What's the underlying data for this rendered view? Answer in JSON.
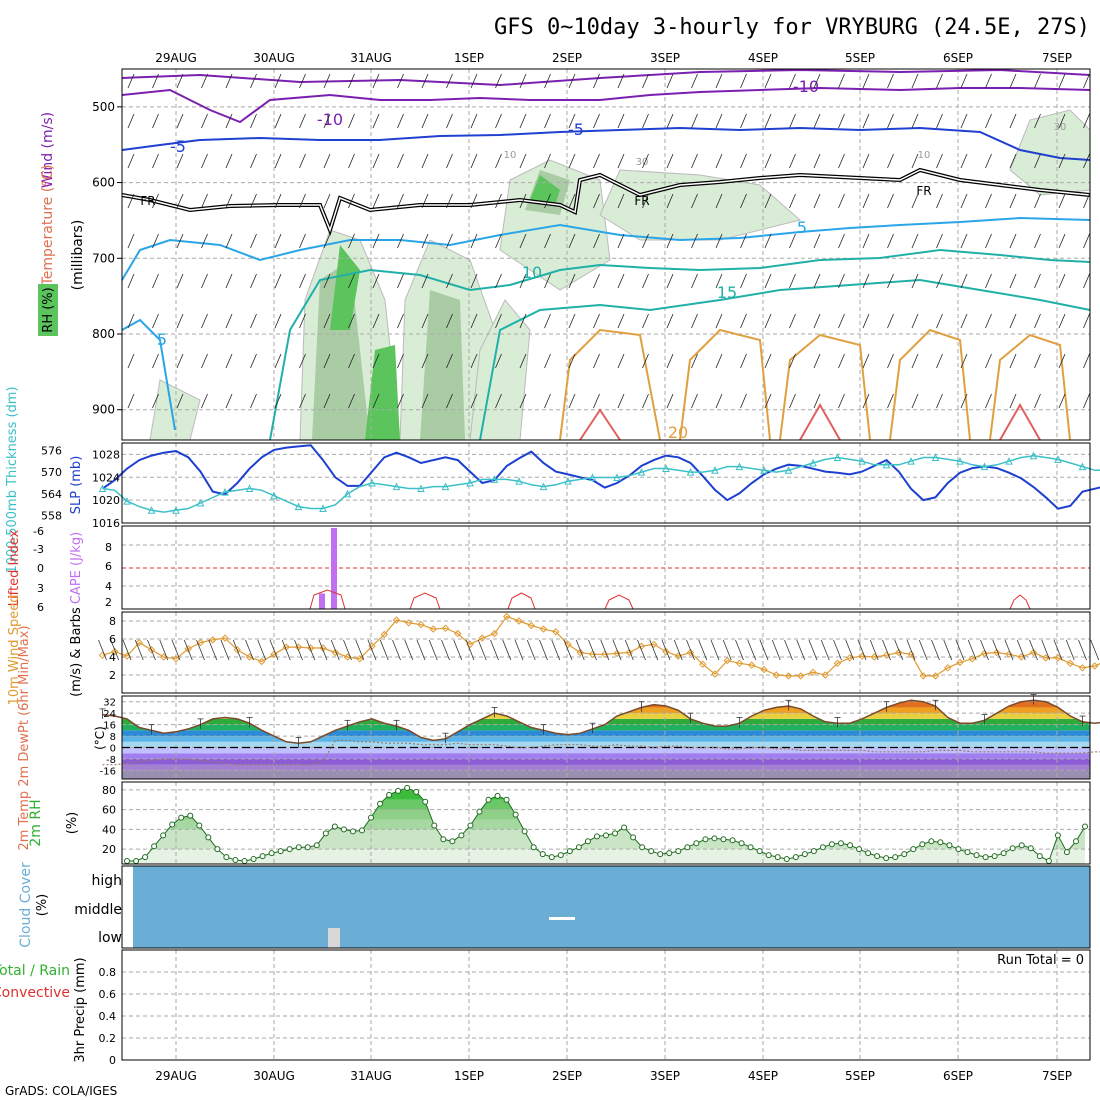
{
  "header": {
    "title": "GFS 0~10day 3-hourly for VRYBURG (24.5E, 27S)",
    "footer": "GrADS: COLA/IGES"
  },
  "x_axis": {
    "day_labels": [
      "29AUG",
      "30AUG",
      "31AUG",
      "1SEP",
      "2SEP",
      "3SEP",
      "4SEP",
      "5SEP",
      "6SEP",
      "7SEP"
    ]
  },
  "colors": {
    "slp": "#1d3fd0",
    "thickness": "#3cc0c8",
    "lifted_index": "#e03030",
    "cape": "#c070f0",
    "wind_speed": "#e09a30",
    "temp_fill_green": "#2eab3a",
    "temp_fill_orange": "#f0a020",
    "rh_green": "#2ea82e",
    "cloud": "#6aaed6",
    "freezing_level": "#000000",
    "temperature_label": "#e07050",
    "wind_label": "#8020b0",
    "rh_label": "#30b030",
    "precip_total": "#30b030",
    "precip_convective": "#e03030"
  },
  "chart_data": [
    {
      "id": "upper_air",
      "type": "contour",
      "ylabel": "(millibars)",
      "label_parts": [
        "Wind (m/s)",
        "Temperature (°C)",
        "RH (%)"
      ],
      "yticks": [
        500,
        600,
        700,
        800,
        900
      ],
      "ylim": [
        940,
        450
      ],
      "contour_labels": [
        "-10",
        "-10",
        "-5",
        "-5",
        "5",
        "5",
        "10",
        "15",
        "20",
        "FR",
        "FR",
        "FR"
      ],
      "rh_labels": [
        "30",
        "10",
        "30",
        "10"
      ]
    },
    {
      "id": "slp_thickness",
      "type": "line",
      "left_label": "1000-500mb Thickness (dm)",
      "right_label": "SLP (mb)",
      "left_ticks": [
        558,
        564,
        570,
        576
      ],
      "right_ticks": [
        1016,
        1020,
        1024,
        1028
      ],
      "slp_ylim": [
        1016,
        1030
      ],
      "thick_ylim": [
        556,
        578
      ],
      "series": [
        {
          "name": "SLP",
          "axis": "right",
          "values": [
            1022,
            1023.5,
            1025.5,
            1027,
            1027.8,
            1028.3,
            1028.6,
            1027.5,
            1025,
            1021.5,
            1021,
            1023,
            1025.5,
            1027.5,
            1028.8,
            1029.2,
            1029.4,
            1029.6,
            1027,
            1024,
            1022.5,
            1022.5,
            1025,
            1027.5,
            1028.3,
            1027.5,
            1026.5,
            1027,
            1027.5,
            1027,
            1025,
            1023,
            1023.5,
            1026,
            1027.3,
            1028.5,
            1026.5,
            1025,
            1024.5,
            1024,
            1023.5,
            1022.2,
            1023,
            1024.3,
            1026,
            1027,
            1027.8,
            1027.5,
            1026.5,
            1024.2,
            1021.8,
            1020,
            1021.2,
            1023,
            1024.5,
            1025.5,
            1026.2,
            1026,
            1025.5,
            1025,
            1024.8,
            1024.5,
            1025,
            1026,
            1027,
            1025,
            1022,
            1020,
            1020.5,
            1023,
            1024.8,
            1025.6,
            1025.9,
            1025.6,
            1024.8,
            1023.8,
            1022.3,
            1020.5,
            1018.5,
            1019,
            1021.5,
            1022,
            1022.5,
            1023,
            1023.5,
            1023,
            1022.2,
            1021.5,
            1020.5,
            1022,
            1024,
            1025.5,
            1023.5,
            1021.5,
            1019.5,
            1017.5,
            1018.5,
            1020.5,
            1021.5,
            1022,
            1023.5,
            1025,
            1026.5
          ]
        },
        {
          "name": "Thickness",
          "axis": "left",
          "values": [
            565.5,
            565,
            562,
            560.5,
            559.5,
            559,
            559.5,
            560,
            561.5,
            563,
            564.5,
            565,
            565.5,
            565,
            563.5,
            562,
            560.5,
            560,
            560,
            561,
            564,
            566,
            567,
            566.5,
            566,
            565.5,
            565.5,
            566,
            566,
            566.5,
            567,
            568,
            568,
            568,
            567.5,
            566.5,
            566,
            566.5,
            567.5,
            568,
            568.5,
            568.5,
            568.5,
            569,
            570,
            571,
            571,
            570.5,
            570,
            570,
            570.5,
            571.5,
            571.5,
            571,
            570.5,
            570,
            570.5,
            571.5,
            572.5,
            573.5,
            574,
            573.5,
            573,
            572,
            572,
            572,
            573,
            574,
            574,
            573.5,
            573,
            572,
            571.5,
            572,
            573,
            574,
            574.5,
            574,
            573.5,
            572.5,
            571.5,
            570.5,
            570.5,
            571.5,
            572.5,
            573.5,
            574,
            574.5,
            575,
            574.5,
            573,
            572.5,
            572.5,
            573,
            574,
            575,
            576,
            575,
            574,
            573,
            571.5,
            570.5,
            571
          ]
        }
      ]
    },
    {
      "id": "stability",
      "type": "bar",
      "left_label": "Lifted Index",
      "right_label": "CAPE (J/kg)",
      "li_ticks": [
        "-6",
        "-3",
        "0",
        "3",
        "6"
      ],
      "cape_ticks": [
        "2",
        "4",
        "6",
        "8"
      ],
      "li_values": [
        [
          "30AUG",
          6
        ],
        [
          "30AUG",
          3.2
        ],
        [
          "30AUG",
          3
        ],
        [
          "31AUG",
          6
        ],
        [
          "31AUG",
          4.5
        ],
        [
          "1SEP",
          3.5
        ],
        [
          "1SEP",
          3.5
        ],
        [
          "1SEP",
          6
        ],
        [
          "2SEP",
          5
        ],
        [
          "2SEP",
          4
        ],
        [
          "2SEP",
          5
        ],
        [
          "3SEP",
          4.5
        ],
        [
          "3SEP",
          4.3
        ],
        [
          "6SEP",
          5
        ],
        [
          "6SEP",
          4
        ]
      ],
      "cape_values": [
        [
          "30AUG 12Z",
          1.5
        ],
        [
          "30AUG 15Z",
          10
        ]
      ]
    },
    {
      "id": "wind10m",
      "type": "line",
      "left_label": "10m Wind Speed",
      "right_label": "(m/s) & Barbs",
      "yticks": [
        2,
        4,
        6,
        8
      ],
      "ylim": [
        0,
        9
      ],
      "series": [
        {
          "name": "10m Wind Speed",
          "values": [
            4.2,
            4.6,
            4.1,
            5.6,
            4.8,
            4.0,
            3.8,
            4.9,
            5.6,
            5.9,
            6.1,
            4.8,
            4.0,
            3.5,
            4.3,
            5.1,
            5.1,
            5.0,
            5.0,
            4.5,
            4.0,
            3.8,
            5.2,
            6.5,
            8.1,
            7.8,
            7.6,
            7.1,
            7.2,
            6.6,
            5.4,
            6.1,
            6.6,
            8.5,
            8.0,
            7.5,
            7.1,
            6.8,
            5.4,
            4.5,
            4.3,
            4.3,
            4.4,
            4.5,
            5.2,
            5.4,
            4.6,
            4.1,
            4.5,
            3.2,
            2.1,
            3.6,
            3.3,
            3.1,
            2.6,
            2.0,
            1.9,
            1.9,
            2.3,
            2.0,
            3.3,
            3.9,
            4.1,
            4.0,
            4.2,
            4.5,
            4.3,
            1.9,
            1.9,
            2.8,
            3.4,
            3.8,
            4.4,
            4.5,
            4.3,
            4.0,
            4.5,
            3.9,
            3.9,
            3.3,
            2.8,
            3.0,
            3.6,
            4.5,
            3.9,
            2.5,
            2.3,
            2.8,
            2.4,
            1.2,
            2.8,
            2.5,
            1.3,
            2.1,
            4.9,
            6.3,
            6.2
          ]
        }
      ]
    },
    {
      "id": "temp2m",
      "type": "area",
      "left_label": "2m Temp 2m DewPt (6hr Min/Max)",
      "unit_label": "(°C)",
      "yticks": [
        -16,
        -8,
        0,
        8,
        16,
        24,
        32
      ],
      "ylim": [
        -22,
        36
      ],
      "series": [
        {
          "name": "2m Temp",
          "values": [
            23,
            22,
            20,
            14,
            12,
            10,
            11,
            13,
            16,
            20,
            21,
            20,
            17,
            12,
            8,
            4,
            3,
            4,
            8,
            12,
            15,
            18,
            20,
            17,
            15,
            12,
            7,
            5,
            6,
            11,
            16,
            20,
            24,
            22,
            18,
            14,
            12,
            10,
            9,
            10,
            13,
            16,
            22,
            25,
            28,
            30,
            29,
            26,
            20,
            17,
            15,
            15,
            17,
            22,
            26,
            28,
            29,
            27,
            22,
            18,
            17,
            17,
            20,
            24,
            28,
            31,
            33,
            32,
            29,
            21,
            17,
            17,
            19,
            24,
            29,
            32,
            33,
            32,
            28,
            22,
            18,
            17,
            18,
            23,
            27,
            29,
            31,
            31,
            30,
            22,
            17,
            16,
            17,
            22,
            26,
            28,
            30,
            30,
            29,
            22,
            15,
            15,
            15,
            16,
            21
          ]
        },
        {
          "name": "2m DewPt",
          "values": [
            -12,
            -12,
            -11,
            -10,
            -9,
            -8,
            -8,
            -8,
            -9,
            -10,
            -11,
            -12,
            -12,
            -12,
            -12,
            -12,
            -12,
            -12,
            -10,
            5,
            5,
            4,
            4,
            3,
            3,
            3,
            2,
            2,
            2,
            3,
            2,
            2,
            2,
            1,
            0,
            0,
            1,
            2,
            2,
            2,
            1,
            1,
            2,
            1,
            1,
            0,
            1,
            1,
            0,
            0,
            0,
            -1,
            -1,
            0,
            0,
            -1,
            -1,
            -2,
            -2,
            -2,
            -2,
            -2,
            -2,
            -3,
            -3,
            -3,
            -3,
            -3,
            -2,
            -2,
            -2,
            -3,
            -3,
            -3,
            -3,
            -3,
            -3,
            -4,
            -4,
            -4,
            -4,
            -3,
            -3,
            -3,
            -3,
            -4,
            -4,
            -4,
            -5,
            -5,
            -5,
            -5,
            -4,
            -3,
            -3,
            -2,
            -10,
            -6,
            -2,
            -3,
            -7,
            -8,
            -8,
            -7
          ]
        }
      ],
      "min_max_markers": [
        "29AUG",
        "30AUG",
        "31AUG",
        "1SEP",
        "2SEP",
        "3SEP",
        "4SEP",
        "5SEP",
        "6SEP",
        "7SEP"
      ]
    },
    {
      "id": "rh2m",
      "type": "area",
      "left_label": "2m RH",
      "unit_label": "(%)",
      "yticks": [
        20,
        40,
        60,
        80
      ],
      "ylim": [
        5,
        88
      ],
      "series": [
        {
          "name": "2m RH",
          "values": [
            8,
            8,
            12,
            23,
            34,
            45,
            52,
            54,
            44,
            32,
            20,
            12,
            9,
            8,
            10,
            13,
            16,
            18,
            20,
            22,
            22,
            24,
            36,
            43,
            40,
            38,
            39,
            52,
            66,
            75,
            79,
            82,
            78,
            68,
            44,
            30,
            28,
            34,
            44,
            58,
            70,
            74,
            70,
            55,
            38,
            22,
            15,
            12,
            14,
            18,
            22,
            28,
            33,
            34,
            36,
            42,
            32,
            22,
            18,
            15,
            16,
            18,
            22,
            26,
            30,
            31,
            30,
            29,
            26,
            22,
            18,
            14,
            12,
            10,
            12,
            15,
            18,
            22,
            25,
            26,
            24,
            20,
            16,
            13,
            11,
            12,
            15,
            20,
            25,
            28,
            27,
            24,
            20,
            17,
            14,
            12,
            13,
            16,
            21,
            24,
            21,
            13,
            8,
            34,
            17,
            28,
            43
          ]
        }
      ]
    },
    {
      "id": "cloud",
      "type": "heatmap",
      "left_label": "Cloud Cover",
      "unit_label": "(%)",
      "levels": [
        "high",
        "middle",
        "low"
      ]
    },
    {
      "id": "precip",
      "type": "bar",
      "left_label_total": "Total / Rain",
      "left_label_conv": "Convective",
      "unit_label": "3hr Precip (mm)",
      "yticks": [
        "0",
        "0.2",
        "0.4",
        "0.6",
        "0.8"
      ],
      "ylim": [
        0,
        1
      ],
      "run_total_label": "Run Total = 0",
      "values": []
    }
  ]
}
